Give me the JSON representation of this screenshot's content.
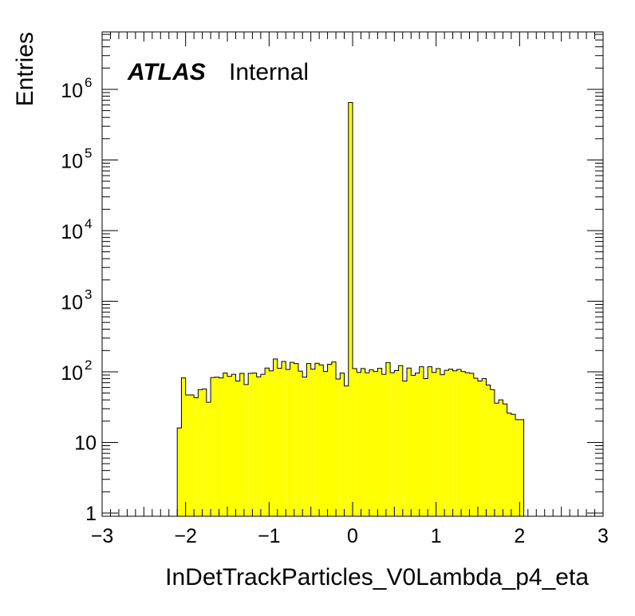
{
  "chart_data": {
    "type": "bar",
    "style": "histogram",
    "xlabel": "InDetTrackParticles_V0Lambda_p4_eta",
    "ylabel": "Entries",
    "label": {
      "experiment": "ATLAS",
      "status": "Internal"
    },
    "xlim": [
      -3,
      3
    ],
    "ylim": [
      0.9,
      6500000
    ],
    "yscale": "log",
    "x_ticks": [
      {
        "value": -3,
        "label": "−3"
      },
      {
        "value": -2,
        "label": "−2"
      },
      {
        "value": -1,
        "label": "−1"
      },
      {
        "value": 0,
        "label": "0"
      },
      {
        "value": 1,
        "label": "1"
      },
      {
        "value": 2,
        "label": "2"
      },
      {
        "value": 3,
        "label": "3"
      }
    ],
    "y_ticks": [
      {
        "value": 1,
        "base": "1",
        "exp": ""
      },
      {
        "value": 10,
        "base": "10",
        "exp": ""
      },
      {
        "value": 100,
        "base": "10",
        "exp": "2"
      },
      {
        "value": 1000,
        "base": "10",
        "exp": "3"
      },
      {
        "value": 10000,
        "base": "10",
        "exp": "4"
      },
      {
        "value": 100000,
        "base": "10",
        "exp": "5"
      },
      {
        "value": 1000000,
        "base": "10",
        "exp": "6"
      }
    ],
    "bins": {
      "start": -2.1,
      "width": 0.05
    },
    "values": [
      16,
      82,
      47,
      47,
      43,
      56,
      57,
      37,
      83,
      84,
      82,
      96,
      86,
      92,
      74,
      95,
      66,
      95,
      96,
      85,
      92,
      113,
      103,
      152,
      112,
      140,
      108,
      136,
      131,
      102,
      84,
      131,
      109,
      132,
      125,
      101,
      128,
      138,
      79,
      96,
      63,
      650000,
      111,
      98,
      111,
      97,
      107,
      101,
      112,
      92,
      135,
      97,
      104,
      122,
      74,
      113,
      89,
      96,
      118,
      80,
      118,
      98,
      111,
      91,
      105,
      109,
      103,
      108,
      101,
      97,
      95,
      81,
      74,
      80,
      65,
      56,
      36,
      40,
      35,
      26,
      25,
      21,
      21,
      0,
      0,
      0,
      0,
      0,
      0,
      0
    ],
    "colors": {
      "fill": "#ffff00",
      "line": "#000000"
    },
    "grid": false,
    "legend": "none"
  }
}
